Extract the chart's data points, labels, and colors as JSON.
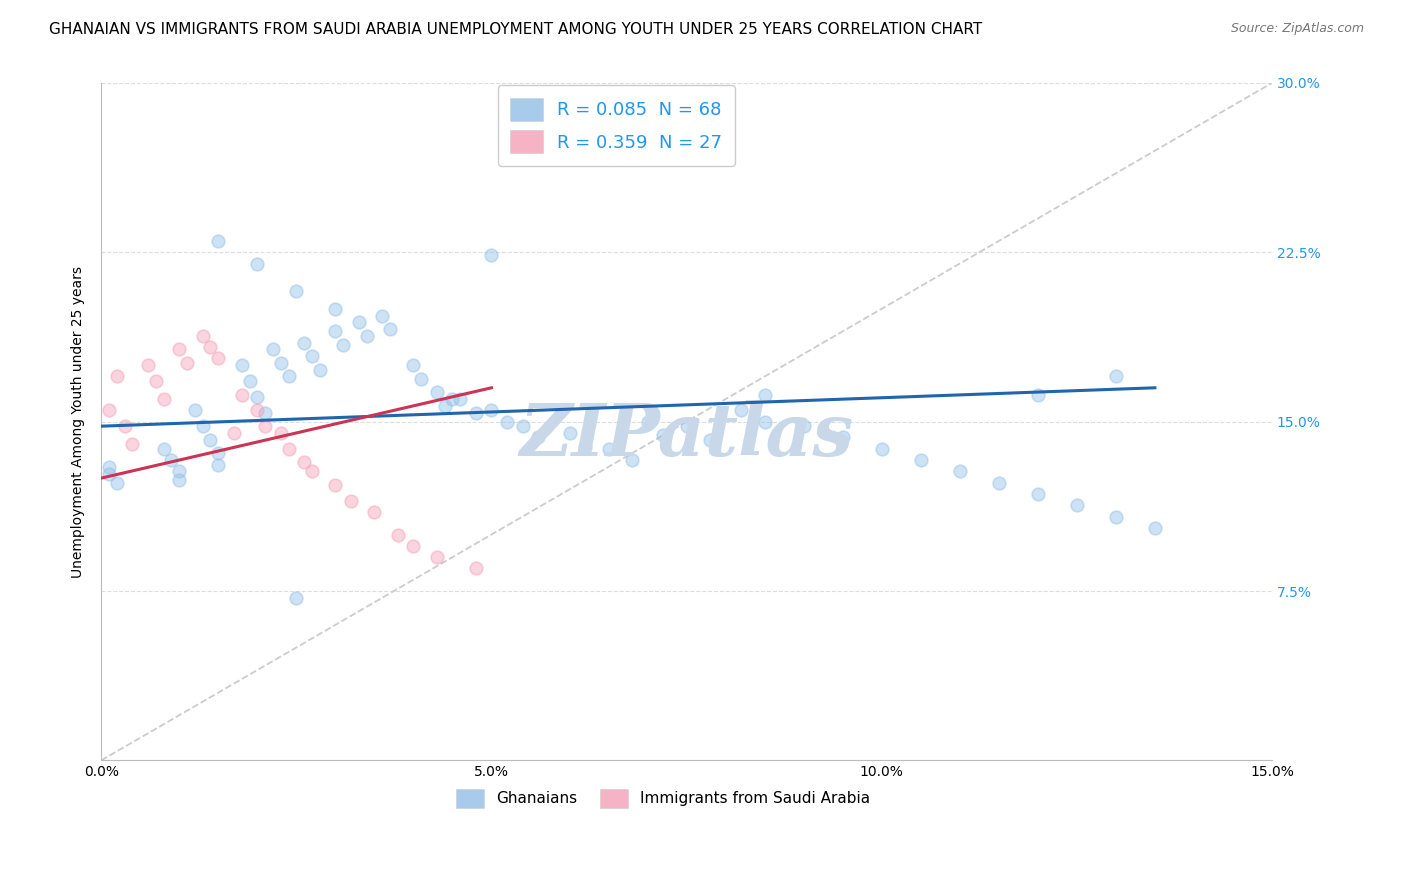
{
  "title": "GHANAIAN VS IMMIGRANTS FROM SAUDI ARABIA UNEMPLOYMENT AMONG YOUTH UNDER 25 YEARS CORRELATION CHART",
  "source": "Source: ZipAtlas.com",
  "ylabel": "Unemployment Among Youth under 25 years",
  "watermark": "ZIPatlas",
  "xlim": [
    0.0,
    0.15
  ],
  "ylim": [
    0.0,
    0.3
  ],
  "xticks": [
    0.0,
    0.05,
    0.1,
    0.15
  ],
  "xticklabels": [
    "0.0%",
    "5.0%",
    "10.0%",
    "15.0%"
  ],
  "yticks": [
    0.0,
    0.075,
    0.15,
    0.225,
    0.3
  ],
  "ytick_labels_right": [
    "",
    "7.5%",
    "15.0%",
    "22.5%",
    "30.0%"
  ],
  "legend_labels": [
    "R = 0.085  N = 68",
    "R = 0.359  N = 27"
  ],
  "bottom_legend": [
    "Ghanaians",
    "Immigrants from Saudi Arabia"
  ],
  "blue_color": "#92bfe8",
  "pink_color": "#f4a0b8",
  "blue_line_color": "#2166ac",
  "pink_line_color": "#cc3355",
  "diag_line_color": "#cccccc",
  "background_color": "#ffffff",
  "grid_color": "#dddddd",
  "title_fontsize": 11,
  "axis_label_fontsize": 10,
  "tick_fontsize": 10,
  "watermark_color": "#c8d8e8",
  "watermark_fontsize": 52,
  "legend_text_color": "#2196F3",
  "right_tick_color": "#2196F3",
  "blue_scatter_x": [
    0.001,
    0.001,
    0.002,
    0.008,
    0.009,
    0.01,
    0.01,
    0.012,
    0.013,
    0.014,
    0.015,
    0.015,
    0.018,
    0.019,
    0.02,
    0.021,
    0.022,
    0.023,
    0.024,
    0.026,
    0.027,
    0.028,
    0.03,
    0.031,
    0.033,
    0.034,
    0.036,
    0.037,
    0.04,
    0.041,
    0.043,
    0.044,
    0.046,
    0.048,
    0.05,
    0.052,
    0.054,
    0.056,
    0.06,
    0.062,
    0.065,
    0.068,
    0.07,
    0.072,
    0.075,
    0.078,
    0.082,
    0.085,
    0.09,
    0.095,
    0.1,
    0.105,
    0.11,
    0.115,
    0.12,
    0.125,
    0.13,
    0.135,
    0.015,
    0.02,
    0.025,
    0.03,
    0.045,
    0.05,
    0.12,
    0.13,
    0.025,
    0.085
  ],
  "blue_scatter_y": [
    0.13,
    0.127,
    0.123,
    0.138,
    0.133,
    0.128,
    0.124,
    0.155,
    0.148,
    0.142,
    0.136,
    0.131,
    0.175,
    0.168,
    0.161,
    0.154,
    0.182,
    0.176,
    0.17,
    0.185,
    0.179,
    0.173,
    0.19,
    0.184,
    0.194,
    0.188,
    0.197,
    0.191,
    0.175,
    0.169,
    0.163,
    0.157,
    0.16,
    0.154,
    0.155,
    0.15,
    0.148,
    0.143,
    0.145,
    0.139,
    0.138,
    0.133,
    0.15,
    0.144,
    0.148,
    0.142,
    0.155,
    0.15,
    0.148,
    0.143,
    0.138,
    0.133,
    0.128,
    0.123,
    0.118,
    0.113,
    0.108,
    0.103,
    0.23,
    0.22,
    0.208,
    0.2,
    0.16,
    0.224,
    0.162,
    0.17,
    0.072,
    0.162
  ],
  "pink_scatter_x": [
    0.001,
    0.002,
    0.003,
    0.004,
    0.006,
    0.007,
    0.008,
    0.01,
    0.011,
    0.013,
    0.014,
    0.015,
    0.017,
    0.018,
    0.02,
    0.021,
    0.023,
    0.024,
    0.026,
    0.027,
    0.03,
    0.032,
    0.035,
    0.038,
    0.04,
    0.043,
    0.048
  ],
  "pink_scatter_y": [
    0.155,
    0.17,
    0.148,
    0.14,
    0.175,
    0.168,
    0.16,
    0.182,
    0.176,
    0.188,
    0.183,
    0.178,
    0.145,
    0.162,
    0.155,
    0.148,
    0.145,
    0.138,
    0.132,
    0.128,
    0.122,
    0.115,
    0.11,
    0.1,
    0.095,
    0.09,
    0.085
  ],
  "blue_line_x": [
    0.0,
    0.135
  ],
  "blue_line_y": [
    0.148,
    0.165
  ],
  "pink_line_x": [
    0.0,
    0.05
  ],
  "pink_line_y": [
    0.125,
    0.165
  ],
  "diag_line_x": [
    0.0,
    0.15
  ],
  "diag_line_y": [
    0.0,
    0.3
  ],
  "scatter_size": 85,
  "scatter_alpha": 0.45,
  "scatter_edgewidth": 1.2
}
